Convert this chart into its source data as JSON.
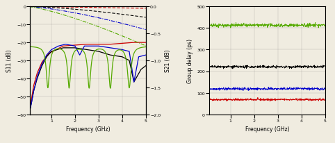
{
  "left_plot": {
    "xlabel": "Frequency (GHz)",
    "ylabel_left": "S11 (dB)",
    "ylabel_right": "S21 (dB)",
    "xlim": [
      0.1,
      5
    ],
    "ylim_left": [
      -60,
      0
    ],
    "ylim_right": [
      -2.0,
      0.0
    ],
    "yticks_left": [
      0,
      -10,
      -20,
      -30,
      -40,
      -50,
      -60
    ],
    "yticks_right": [
      0.0,
      -0.5,
      -1.0,
      -1.5,
      -2.0
    ],
    "background": "#f0ece0"
  },
  "right_plot": {
    "xlabel": "Frequency (GHz)",
    "ylabel": "Group delay (ps)",
    "xlim": [
      0.1,
      5
    ],
    "ylim": [
      0,
      500
    ],
    "yticks": [
      0,
      100,
      200,
      300,
      400,
      500
    ],
    "background": "#f0ece0",
    "lines": [
      {
        "color": "#cc0000",
        "value": 68,
        "noise": 2.5
      },
      {
        "color": "#0000cc",
        "value": 118,
        "noise": 3
      },
      {
        "color": "#000000",
        "value": 220,
        "noise": 3
      },
      {
        "color": "#55aa00",
        "value": 413,
        "noise": 4
      }
    ]
  }
}
